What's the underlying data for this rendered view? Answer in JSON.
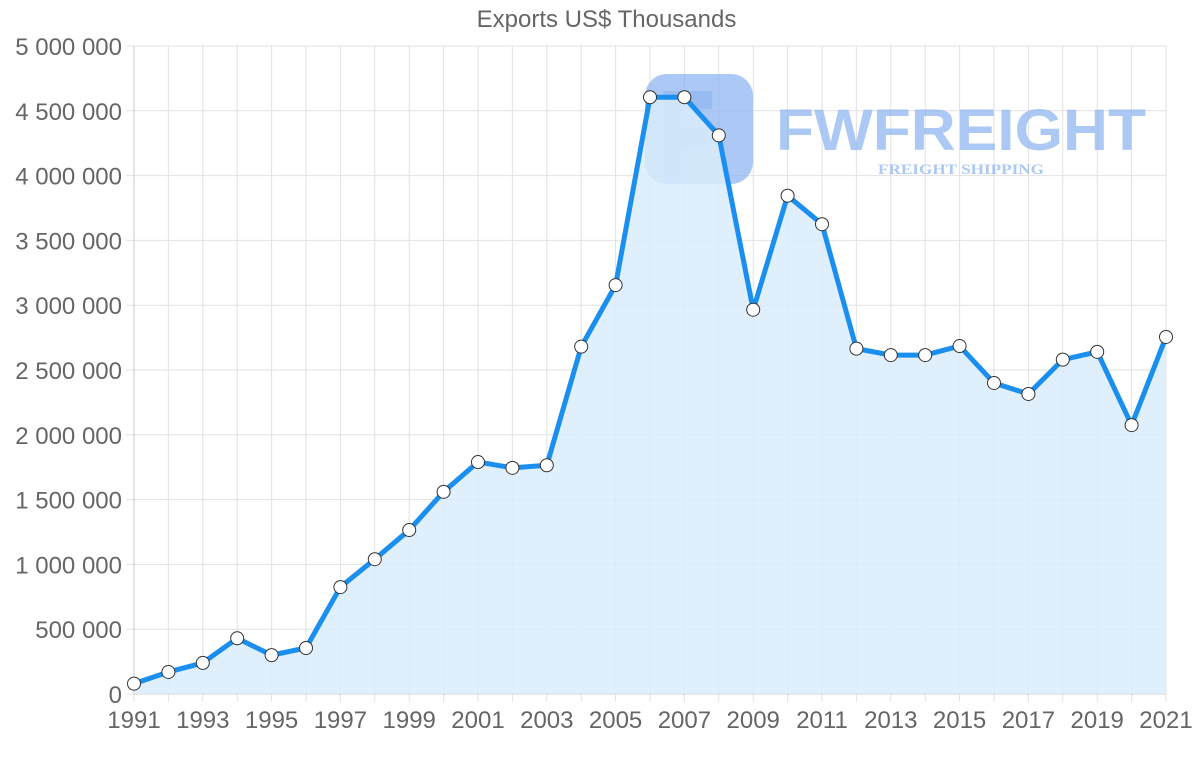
{
  "title": "Exports US$ Thousands",
  "watermark": {
    "brand": "FWFREIGHT",
    "tagline": "FREIGHT SHIPPING",
    "color": "#8ab2f0"
  },
  "colors": {
    "line": "#1a8ff0",
    "fill": "#d9ecfc",
    "grid": "#e2e2e2",
    "axis_text": "#666666",
    "point_fill": "#ffffff",
    "point_stroke": "#333333"
  },
  "chart_data": {
    "type": "area",
    "title": "Exports US$ Thousands",
    "xlabel": "",
    "ylabel": "",
    "x": [
      1991,
      1992,
      1993,
      1994,
      1995,
      1996,
      1997,
      1998,
      1999,
      2000,
      2001,
      2002,
      2003,
      2004,
      2005,
      2006,
      2007,
      2008,
      2009,
      2010,
      2011,
      2012,
      2013,
      2014,
      2015,
      2016,
      2017,
      2018,
      2019,
      2020,
      2021
    ],
    "x_tick_labels": [
      "1991",
      "1993",
      "1995",
      "1997",
      "1999",
      "2001",
      "2003",
      "2005",
      "2007",
      "2009",
      "2011",
      "2013",
      "2015",
      "2017",
      "2019",
      "2021"
    ],
    "y_tick_labels": [
      "0",
      "500 000",
      "1 000 000",
      "1 500 000",
      "2 000 000",
      "2 500 000",
      "3 000 000",
      "3 500 000",
      "4 000 000",
      "4 500 000",
      "5 000 000"
    ],
    "ylim": [
      0,
      5000000
    ],
    "grid": true,
    "legend": "none",
    "series": [
      {
        "name": "Exports US$ Thousands",
        "values": [
          80000,
          170000,
          240000,
          430000,
          300000,
          355000,
          825000,
          1040000,
          1265000,
          1560000,
          1790000,
          1745000,
          1765000,
          2680000,
          3155000,
          4605000,
          4605000,
          4310000,
          2965000,
          3845000,
          3625000,
          2665000,
          2615000,
          2615000,
          2685000,
          2400000,
          2315000,
          2580000,
          2640000,
          2075000,
          2755000
        ]
      }
    ]
  }
}
